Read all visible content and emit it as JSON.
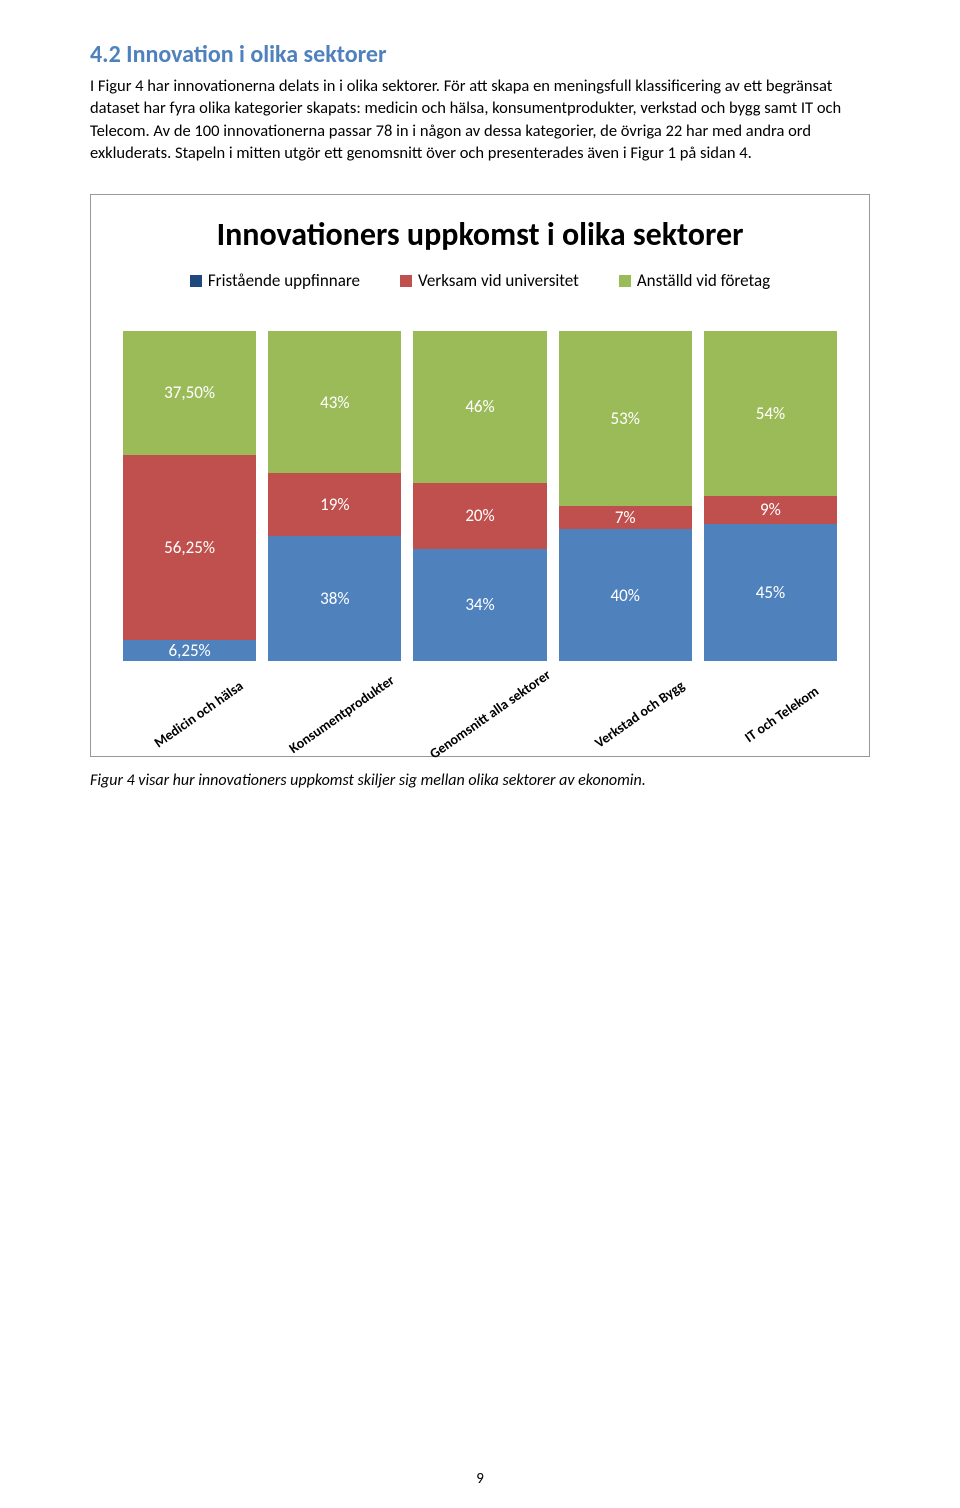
{
  "heading": "4.2 Innovation i olika sektorer",
  "body": "I Figur 4 har innovationerna delats in i olika sektorer. För att skapa en meningsfull klassificering av ett begränsat dataset har fyra olika kategorier skapats: medicin och hälsa, konsumentprodukter, verkstad och bygg samt IT och Telecom. Av de 100 innovationerna passar 78 in i någon av dessa kategorier, de övriga 22 har med andra ord exkluderats. Stapeln i mitten utgör ett genomsnitt över och presenterades även i Figur 1 på sidan 4.",
  "chart": {
    "title": "Innovationers uppkomst i olika sektorer",
    "legend": [
      {
        "label": "Fristående uppfinnare",
        "color": "#4f81bd",
        "swatch": "#1f497d"
      },
      {
        "label": "Verksam vid universitet",
        "color": "#c0504d",
        "swatch": "#c0504d"
      },
      {
        "label": "Anställd vid företag",
        "color": "#9bbb59",
        "swatch": "#9bbb59"
      }
    ],
    "colors": {
      "top": "#9bbb59",
      "mid": "#c0504d",
      "bot": "#4f81bd"
    },
    "categories": [
      {
        "label": "Medicin och hälsa",
        "segments": [
          {
            "value": 37.5,
            "text": "37,50%"
          },
          {
            "value": 56.25,
            "text": "56,25%"
          },
          {
            "value": 6.25,
            "text": "6,25%"
          }
        ]
      },
      {
        "label": "Konsumentprodukter",
        "segments": [
          {
            "value": 43,
            "text": "43%"
          },
          {
            "value": 19,
            "text": "19%"
          },
          {
            "value": 38,
            "text": "38%"
          }
        ]
      },
      {
        "label": "Genomsnitt alla sektorer",
        "segments": [
          {
            "value": 46,
            "text": "46%"
          },
          {
            "value": 20,
            "text": "20%"
          },
          {
            "value": 34,
            "text": "34%"
          }
        ]
      },
      {
        "label": "Verkstad och Bygg",
        "segments": [
          {
            "value": 53,
            "text": "53%"
          },
          {
            "value": 7,
            "text": "7%"
          },
          {
            "value": 40,
            "text": "40%"
          }
        ]
      },
      {
        "label": "IT och Telekom",
        "segments": [
          {
            "value": 54,
            "text": "54%"
          },
          {
            "value": 9,
            "text": "9%"
          },
          {
            "value": 45,
            "text": "45%"
          }
        ]
      }
    ]
  },
  "caption": "Figur 4 visar hur innovationers uppkomst skiljer sig mellan olika sektorer av ekonomin.",
  "pageNumber": "9"
}
